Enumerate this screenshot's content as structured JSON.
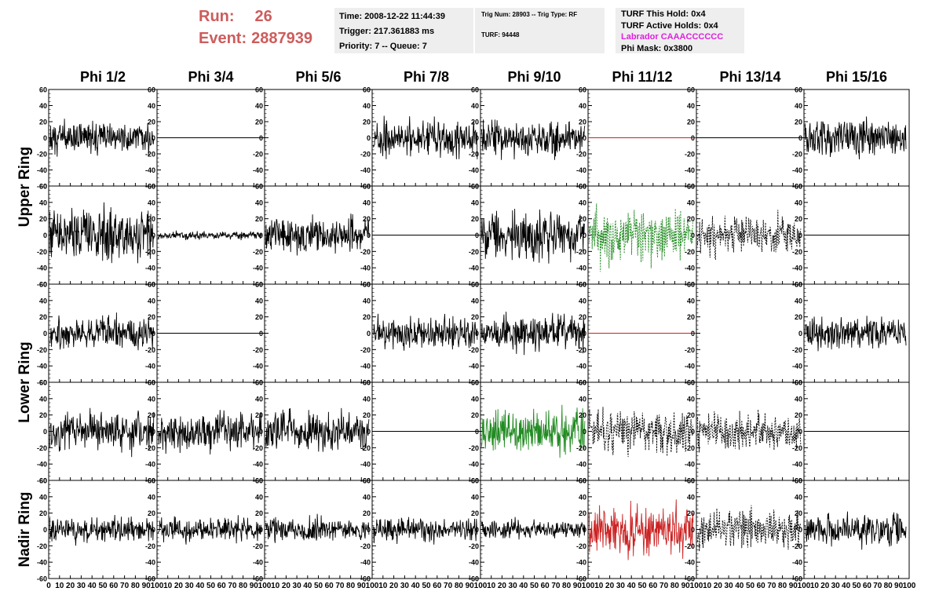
{
  "header": {
    "run_label": "Run:",
    "run_value": "26",
    "event_label": "Event:",
    "event_value": "2887939",
    "run_color": "#cd5c5c",
    "time": "Time: 2008-12-22 11:44:39",
    "trigger": "Trigger: 217.361883 ms",
    "priority_queue": "Priority: 7 -- Queue: 7",
    "trig_num_type": "Trig Num: 28903 -- Trig Type: RF",
    "turf": "TURF: 94448",
    "turf_this_hold": "TURF This Hold: 0x4",
    "turf_active_holds": "TURF Active Holds: 0x4",
    "labrador": "Labrador CAAACCCCCC",
    "labrador_color": "#e020e0",
    "phi_mask": "Phi Mask: 0x3800"
  },
  "columns": [
    "Phi 1/2",
    "Phi 3/4",
    "Phi 5/6",
    "Phi 7/8",
    "Phi 9/10",
    "Phi 11/12",
    "Phi 13/14",
    "Phi 15/16"
  ],
  "ring_labels": [
    "Upper Ring",
    "Lower Ring",
    "Nadir Ring"
  ],
  "colors": {
    "black": "#000000",
    "red": "#cc2222",
    "green": "#228b22"
  },
  "chart_data": {
    "type": "line",
    "ylim": [
      -60,
      60
    ],
    "xlim": [
      0,
      100
    ],
    "y_ticks": [
      -60,
      -40,
      -20,
      0,
      20,
      40,
      60
    ],
    "x_ticks": [
      0,
      10,
      20,
      30,
      40,
      50,
      60,
      70,
      80,
      90,
      100
    ],
    "x_tick_labels": [
      "0",
      "10",
      "20",
      "30",
      "40",
      "50",
      "60",
      "70",
      "80",
      "90",
      "100"
    ],
    "rows": [
      [
        {
          "kind": "noise",
          "amp": 12,
          "color": "black",
          "seed": 1
        },
        {
          "kind": "flat",
          "color": "black"
        },
        {
          "kind": "none"
        },
        {
          "kind": "noise",
          "amp": 14,
          "color": "black",
          "seed": 3
        },
        {
          "kind": "noise",
          "amp": 14,
          "color": "black",
          "seed": 4
        },
        {
          "kind": "flat",
          "color": "red"
        },
        {
          "kind": "flat",
          "color": "black"
        },
        {
          "kind": "noise",
          "amp": 15,
          "color": "black",
          "seed": 7
        }
      ],
      [
        {
          "kind": "noise",
          "amp": 20,
          "color": "black",
          "seed": 11
        },
        {
          "kind": "noise",
          "amp": 3,
          "color": "black",
          "seed": 12
        },
        {
          "kind": "noise",
          "amp": 14,
          "color": "black",
          "seed": 13
        },
        {
          "kind": "flat",
          "color": "black"
        },
        {
          "kind": "noise",
          "amp": 18,
          "color": "black",
          "seed": 15
        },
        {
          "kind": "noise",
          "amp": 20,
          "color": "green",
          "seed": 16,
          "dash": true
        },
        {
          "kind": "noise",
          "amp": 14,
          "color": "black",
          "seed": 17,
          "dash": true
        },
        {
          "kind": "flat",
          "color": "black"
        }
      ],
      [
        {
          "kind": "noise",
          "amp": 12,
          "color": "black",
          "seed": 21
        },
        {
          "kind": "flat",
          "color": "black"
        },
        {
          "kind": "none"
        },
        {
          "kind": "noise",
          "amp": 11,
          "color": "black",
          "seed": 24
        },
        {
          "kind": "noise",
          "amp": 13,
          "color": "black",
          "seed": 25
        },
        {
          "kind": "flat",
          "color": "red"
        },
        {
          "kind": "none"
        },
        {
          "kind": "noise",
          "amp": 11,
          "color": "black",
          "seed": 28
        }
      ],
      [
        {
          "kind": "noise",
          "amp": 14,
          "color": "black",
          "seed": 31
        },
        {
          "kind": "noise",
          "amp": 15,
          "color": "black",
          "seed": 32
        },
        {
          "kind": "noise",
          "amp": 15,
          "color": "black",
          "seed": 33
        },
        {
          "kind": "flat",
          "color": "black"
        },
        {
          "kind": "noise",
          "amp": 16,
          "color": "green",
          "seed": 35
        },
        {
          "kind": "noise",
          "amp": 15,
          "color": "black",
          "seed": 36,
          "dash": true
        },
        {
          "kind": "noise",
          "amp": 13,
          "color": "black",
          "seed": 37,
          "dash": true
        },
        {
          "kind": "flat",
          "color": "black"
        }
      ],
      [
        {
          "kind": "noise",
          "amp": 9,
          "color": "black",
          "seed": 41
        },
        {
          "kind": "noise",
          "amp": 9,
          "color": "black",
          "seed": 42
        },
        {
          "kind": "noise",
          "amp": 9,
          "color": "black",
          "seed": 43
        },
        {
          "kind": "noise",
          "amp": 9,
          "color": "black",
          "seed": 44
        },
        {
          "kind": "noise",
          "amp": 7,
          "color": "black",
          "seed": 45
        },
        {
          "kind": "noise",
          "amp": 18,
          "color": "red",
          "seed": 46
        },
        {
          "kind": "noise",
          "amp": 15,
          "color": "black",
          "seed": 47,
          "dash": true
        },
        {
          "kind": "noise",
          "amp": 12,
          "color": "black",
          "seed": 48
        }
      ]
    ]
  }
}
